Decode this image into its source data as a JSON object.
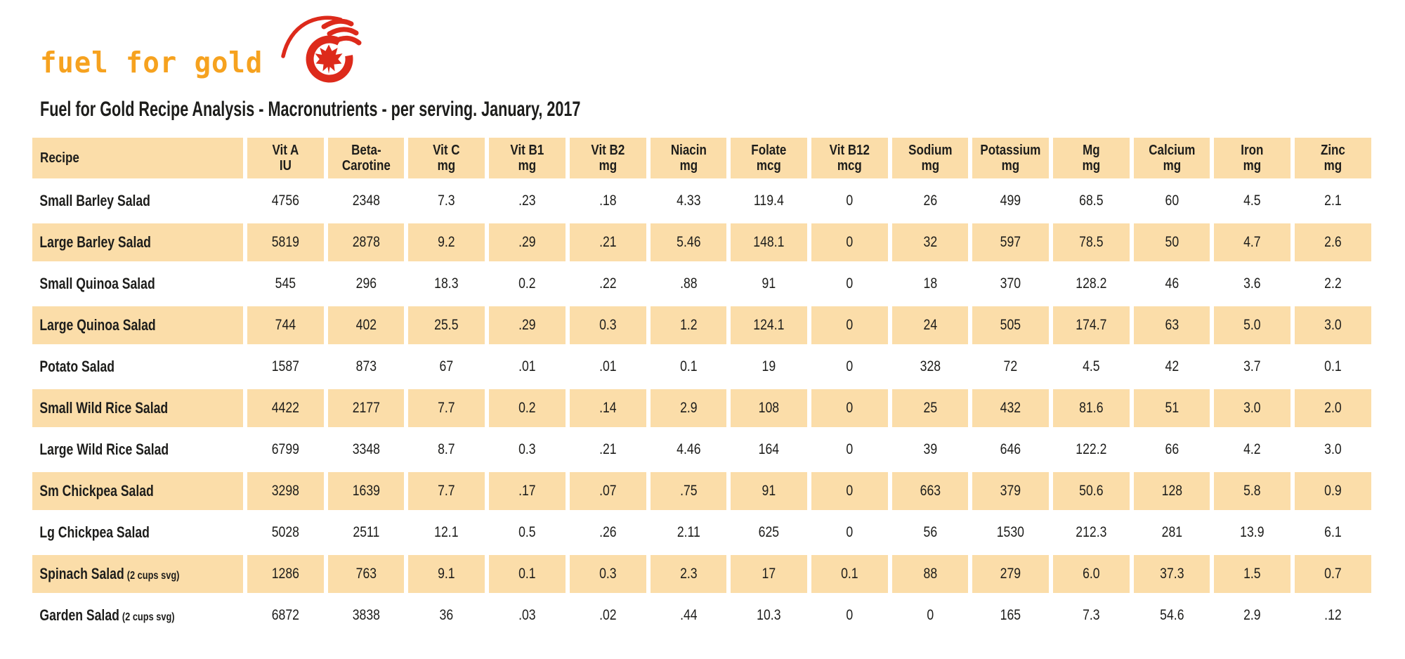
{
  "logo": {
    "text": "fuel for gold",
    "icon": "maple-leaf-swoosh-icon"
  },
  "title": "Fuel for Gold Recipe Analysis - Macronutrients - per serving. January, 2017",
  "colors": {
    "band": "#FBDDA9",
    "logo_gold": "#F6A21F",
    "logo_red": "#DD2A1B",
    "text": "#1D1D1B"
  },
  "table": {
    "columns": [
      {
        "label": "Recipe",
        "unit": ""
      },
      {
        "label": "Vit A",
        "unit": "IU"
      },
      {
        "label": "Beta-",
        "unit": "Carotine"
      },
      {
        "label": "Vit C",
        "unit": "mg"
      },
      {
        "label": "Vit B1",
        "unit": "mg"
      },
      {
        "label": "Vit B2",
        "unit": "mg"
      },
      {
        "label": "Niacin",
        "unit": "mg"
      },
      {
        "label": "Folate",
        "unit": "mcg"
      },
      {
        "label": "Vit B12",
        "unit": "mcg"
      },
      {
        "label": "Sodium",
        "unit": "mg"
      },
      {
        "label": "Potassium",
        "unit": "mg"
      },
      {
        "label": "Mg",
        "unit": "mg"
      },
      {
        "label": "Calcium",
        "unit": "mg"
      },
      {
        "label": "Iron",
        "unit": "mg"
      },
      {
        "label": "Zinc",
        "unit": "mg"
      }
    ],
    "rows": [
      {
        "name": "Small Barley Salad",
        "note": "",
        "values": [
          "4756",
          "2348",
          "7.3",
          ".23",
          ".18",
          "4.33",
          "119.4",
          "0",
          "26",
          "499",
          "68.5",
          "60",
          "4.5",
          "2.1"
        ]
      },
      {
        "name": "Large Barley Salad",
        "note": "",
        "values": [
          "5819",
          "2878",
          "9.2",
          ".29",
          ".21",
          "5.46",
          "148.1",
          "0",
          "32",
          "597",
          "78.5",
          "50",
          "4.7",
          "2.6"
        ]
      },
      {
        "name": "Small Quinoa Salad",
        "note": "",
        "values": [
          "545",
          "296",
          "18.3",
          "0.2",
          ".22",
          ".88",
          "91",
          "0",
          "18",
          "370",
          "128.2",
          "46",
          "3.6",
          "2.2"
        ]
      },
      {
        "name": "Large Quinoa Salad",
        "note": "",
        "values": [
          "744",
          "402",
          "25.5",
          ".29",
          "0.3",
          "1.2",
          "124.1",
          "0",
          "24",
          "505",
          "174.7",
          "63",
          "5.0",
          "3.0"
        ]
      },
      {
        "name": "Potato Salad",
        "note": "",
        "values": [
          "1587",
          "873",
          "67",
          ".01",
          ".01",
          "0.1",
          "19",
          "0",
          "328",
          "72",
          "4.5",
          "42",
          "3.7",
          "0.1"
        ]
      },
      {
        "name": "Small Wild Rice Salad",
        "note": "",
        "values": [
          "4422",
          "2177",
          "7.7",
          "0.2",
          ".14",
          "2.9",
          "108",
          "0",
          "25",
          "432",
          "81.6",
          "51",
          "3.0",
          "2.0"
        ]
      },
      {
        "name": "Large Wild Rice Salad",
        "note": "",
        "values": [
          "6799",
          "3348",
          "8.7",
          "0.3",
          ".21",
          "4.46",
          "164",
          "0",
          "39",
          "646",
          "122.2",
          "66",
          "4.2",
          "3.0"
        ]
      },
      {
        "name": "Sm Chickpea Salad",
        "note": "",
        "values": [
          "3298",
          "1639",
          "7.7",
          ".17",
          ".07",
          ".75",
          "91",
          "0",
          "663",
          "379",
          "50.6",
          "128",
          "5.8",
          "0.9"
        ]
      },
      {
        "name": "Lg Chickpea Salad",
        "note": "",
        "values": [
          "5028",
          "2511",
          "12.1",
          "0.5",
          ".26",
          "2.11",
          "625",
          "0",
          "56",
          "1530",
          "212.3",
          "281",
          "13.9",
          "6.1"
        ]
      },
      {
        "name": "Spinach Salad",
        "note": "(2 cups svg)",
        "values": [
          "1286",
          "763",
          "9.1",
          "0.1",
          "0.3",
          "2.3",
          "17",
          "0.1",
          "88",
          "279",
          "6.0",
          "37.3",
          "1.5",
          "0.7"
        ]
      },
      {
        "name": "Garden Salad",
        "note": "(2 cups svg)",
        "values": [
          "6872",
          "3838",
          "36",
          ".03",
          ".02",
          ".44",
          "10.3",
          "0",
          "0",
          "165",
          "7.3",
          "54.6",
          "2.9",
          ".12"
        ]
      }
    ]
  }
}
